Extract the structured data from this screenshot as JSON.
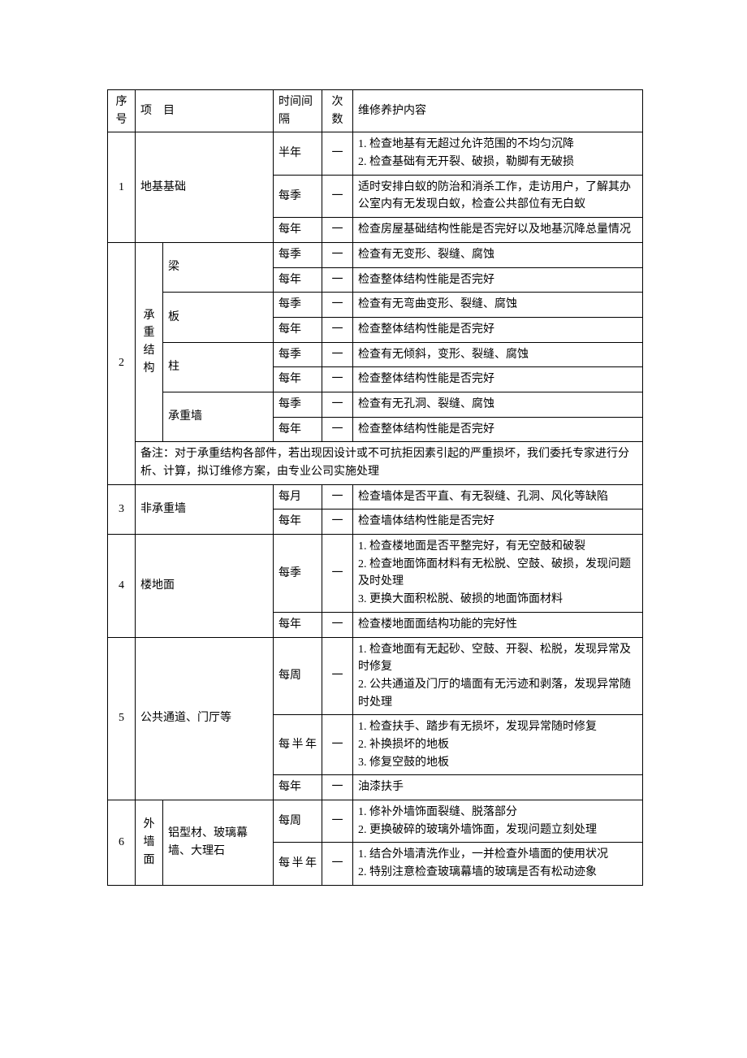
{
  "header": {
    "seq": "序号",
    "item": "项　目",
    "period": "时间间隔",
    "count": "次数",
    "content": "维修养护内容"
  },
  "r1": {
    "seq": "1",
    "item": "地基基础",
    "a_period": "半年",
    "a_count": "一",
    "a_content": "1. 检查地基有无超过允许范围的不均匀沉降\n2. 检查基础有无开裂、破损，勒脚有无破损",
    "b_period": "每季",
    "b_count": "一",
    "b_content": "适时安排白蚁的防治和消杀工作，走访用户，了解其办公室内有无发现白蚁，检查公共部位有无白蚁",
    "c_period": "每年",
    "c_count": "一",
    "c_content": "检查房屋基础结构性能是否完好以及地基沉降总量情况"
  },
  "r2": {
    "seq": "2",
    "group": "承重结构",
    "beam": "梁",
    "slab": "板",
    "col": "柱",
    "wall": "承重墙",
    "p_q": "每季",
    "p_y": "每年",
    "one": "一",
    "beam_q": "检查有无变形、裂缝、腐蚀",
    "beam_y": "检查整体结构性能是否完好",
    "slab_q": "检查有无弯曲变形、裂缝、腐蚀",
    "slab_y": "检查整体结构性能是否完好",
    "col_q": "检查有无倾斜，变形、裂缝、腐蚀",
    "col_y": "检查整体结构性能是否完好",
    "wall_q": "检查有无孔洞、裂缝、腐蚀",
    "wall_y": "检查整体结构性能是否完好",
    "note": "备注：对于承重结构各部件，若出现因设计或不可抗拒因素引起的严重损坏，我们委托专家进行分析、计算，拟订维修方案，由专业公司实施处理"
  },
  "r3": {
    "seq": "3",
    "item": "非承重墙",
    "a_period": "每月",
    "a_count": "一",
    "a_content": "检查墙体是否平直、有无裂缝、孔洞、风化等缺陷",
    "b_period": "每年",
    "b_count": "一",
    "b_content": "检查墙体结构性能是否完好"
  },
  "r4": {
    "seq": "4",
    "item": "楼地面",
    "a_period": "每季",
    "a_count": "一",
    "a_content": "1. 检查楼地面是否平整完好，有无空鼓和破裂\n2. 检查地面饰面材料有无松脱、空鼓、破损，发现问题及时处理\n3. 更换大面积松脱、破损的地面饰面材料",
    "b_period": "每年",
    "b_count": "一",
    "b_content": "检查楼地面面结构功能的完好性"
  },
  "r5": {
    "seq": "5",
    "item": "公共通道、门厅等",
    "a_period": "每周",
    "a_count": "一",
    "a_content": "1. 检查地面有无起砂、空鼓、开裂、松脱，发现异常及时修复\n2. 公共通道及门厅的墙面有无污迹和剥落，发现异常随时处理",
    "b_period": "每半年",
    "b_count": "一",
    "b_content": "1. 检查扶手、踏步有无损坏，发现异常随时修复\n2. 补换损坏的地板\n3. 修复空鼓的地板",
    "c_period": "每年",
    "c_count": "一",
    "c_content": "油漆扶手"
  },
  "r6": {
    "seq": "6",
    "group": "外墙面",
    "sub": "铝型材、玻璃幕墙、大理石",
    "a_period": "每周",
    "a_count": "一",
    "a_content": "1. 修补外墙饰面裂缝、脱落部分\n2. 更换破碎的玻璃外墙饰面，发现问题立刻处理",
    "b_period": "每半年",
    "b_count": "一",
    "b_content": "1. 结合外墙清洗作业，一并检查外墙面的使用状况\n2. 特别注意检查玻璃幕墙的玻璃是否有松动迹象"
  }
}
